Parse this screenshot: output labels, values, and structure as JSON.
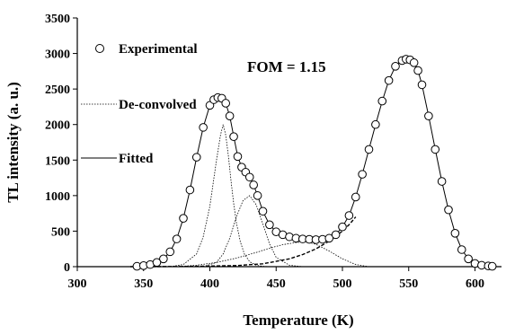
{
  "chart_data": {
    "type": "scatter",
    "xlabel": "Temperature (K)",
    "ylabel": "TL intensity (a. u.)",
    "xlim": [
      300,
      620
    ],
    "ylim": [
      0,
      3500
    ],
    "x_ticks": [
      300,
      350,
      400,
      450,
      500,
      550,
      600
    ],
    "y_ticks": [
      0,
      500,
      1000,
      1500,
      2000,
      2500,
      3000,
      3500
    ],
    "annotation": "FOM = 1.15",
    "legend_position": "left",
    "series": [
      {
        "name": "Experimental",
        "style": "open-circle",
        "color": "#000000",
        "x": [
          345,
          350,
          355,
          360,
          365,
          370,
          375,
          380,
          385,
          390,
          395,
          400,
          403,
          406,
          409,
          412,
          415,
          418,
          421,
          424,
          427,
          430,
          433,
          436,
          440,
          445,
          450,
          455,
          460,
          465,
          470,
          475,
          480,
          485,
          490,
          495,
          500,
          505,
          510,
          515,
          520,
          525,
          530,
          535,
          540,
          545,
          548,
          551,
          554,
          557,
          560,
          565,
          570,
          575,
          580,
          585,
          590,
          595,
          600,
          605,
          610,
          613
        ],
        "y": [
          5,
          15,
          30,
          60,
          110,
          210,
          390,
          680,
          1080,
          1540,
          1960,
          2270,
          2350,
          2380,
          2370,
          2300,
          2120,
          1830,
          1550,
          1400,
          1330,
          1260,
          1150,
          1000,
          780,
          590,
          490,
          450,
          420,
          400,
          390,
          385,
          380,
          385,
          400,
          450,
          560,
          720,
          980,
          1300,
          1650,
          2000,
          2330,
          2620,
          2820,
          2900,
          2920,
          2910,
          2870,
          2760,
          2560,
          2120,
          1650,
          1200,
          800,
          470,
          240,
          110,
          45,
          20,
          10,
          5
        ]
      },
      {
        "name": "De-convolved",
        "style": "dotted",
        "color": "#000000",
        "components": [
          {
            "x": [
              370,
              380,
              390,
              395,
              400,
              405,
              408,
              410,
              412,
              414,
              416,
              418,
              420,
              423,
              426,
              430,
              435,
              440,
              445,
              450
            ],
            "y": [
              0,
              30,
              180,
              420,
              850,
              1500,
              1850,
              2000,
              1850,
              1550,
              1200,
              880,
              620,
              350,
              180,
              70,
              20,
              5,
              0,
              0
            ]
          },
          {
            "x": [
              395,
              405,
              410,
              415,
              420,
              425,
              430,
              435,
              440,
              445,
              450,
              460,
              470
            ],
            "y": [
              0,
              60,
              180,
              400,
              700,
              930,
              1000,
              870,
              600,
              320,
              130,
              20,
              0
            ]
          },
          {
            "x": [
              375,
              390,
              405,
              420,
              435,
              445,
              455,
              465,
              470,
              475,
              480,
              490,
              500,
              510,
              520
            ],
            "y": [
              0,
              20,
              60,
              120,
              200,
              260,
              310,
              340,
              345,
              340,
              315,
              220,
              110,
              30,
              0
            ]
          }
        ]
      },
      {
        "name": "Fitted",
        "style": "solid",
        "color": "#000000",
        "x": [
          345,
          350,
          355,
          360,
          365,
          370,
          375,
          380,
          385,
          390,
          395,
          400,
          403,
          406,
          409,
          412,
          415,
          418,
          421,
          424,
          427,
          430,
          433,
          436,
          440,
          445,
          450,
          455,
          460,
          465,
          470,
          475,
          480,
          485,
          490,
          495,
          500,
          505,
          510,
          515,
          520,
          525,
          530,
          535,
          540,
          545,
          548,
          551,
          554,
          557,
          560,
          565,
          570,
          575,
          580,
          585,
          590,
          595,
          600,
          605,
          610,
          613
        ],
        "y": [
          5,
          15,
          30,
          60,
          110,
          210,
          390,
          680,
          1080,
          1540,
          1960,
          2270,
          2350,
          2380,
          2370,
          2300,
          2120,
          1830,
          1550,
          1400,
          1330,
          1260,
          1150,
          1000,
          780,
          590,
          490,
          450,
          420,
          400,
          390,
          385,
          380,
          385,
          400,
          450,
          560,
          720,
          980,
          1300,
          1650,
          2000,
          2330,
          2620,
          2820,
          2900,
          2920,
          2910,
          2870,
          2760,
          2560,
          2120,
          1650,
          1200,
          800,
          470,
          240,
          110,
          45,
          20,
          10,
          5
        ]
      },
      {
        "name": "",
        "style": "dashed",
        "color": "#000000",
        "x": [
          340,
          380,
          420,
          440,
          460,
          470,
          480,
          490,
          500,
          505,
          510
        ],
        "y": [
          0,
          2,
          15,
          40,
          110,
          170,
          250,
          360,
          500,
          590,
          700
        ]
      }
    ]
  }
}
